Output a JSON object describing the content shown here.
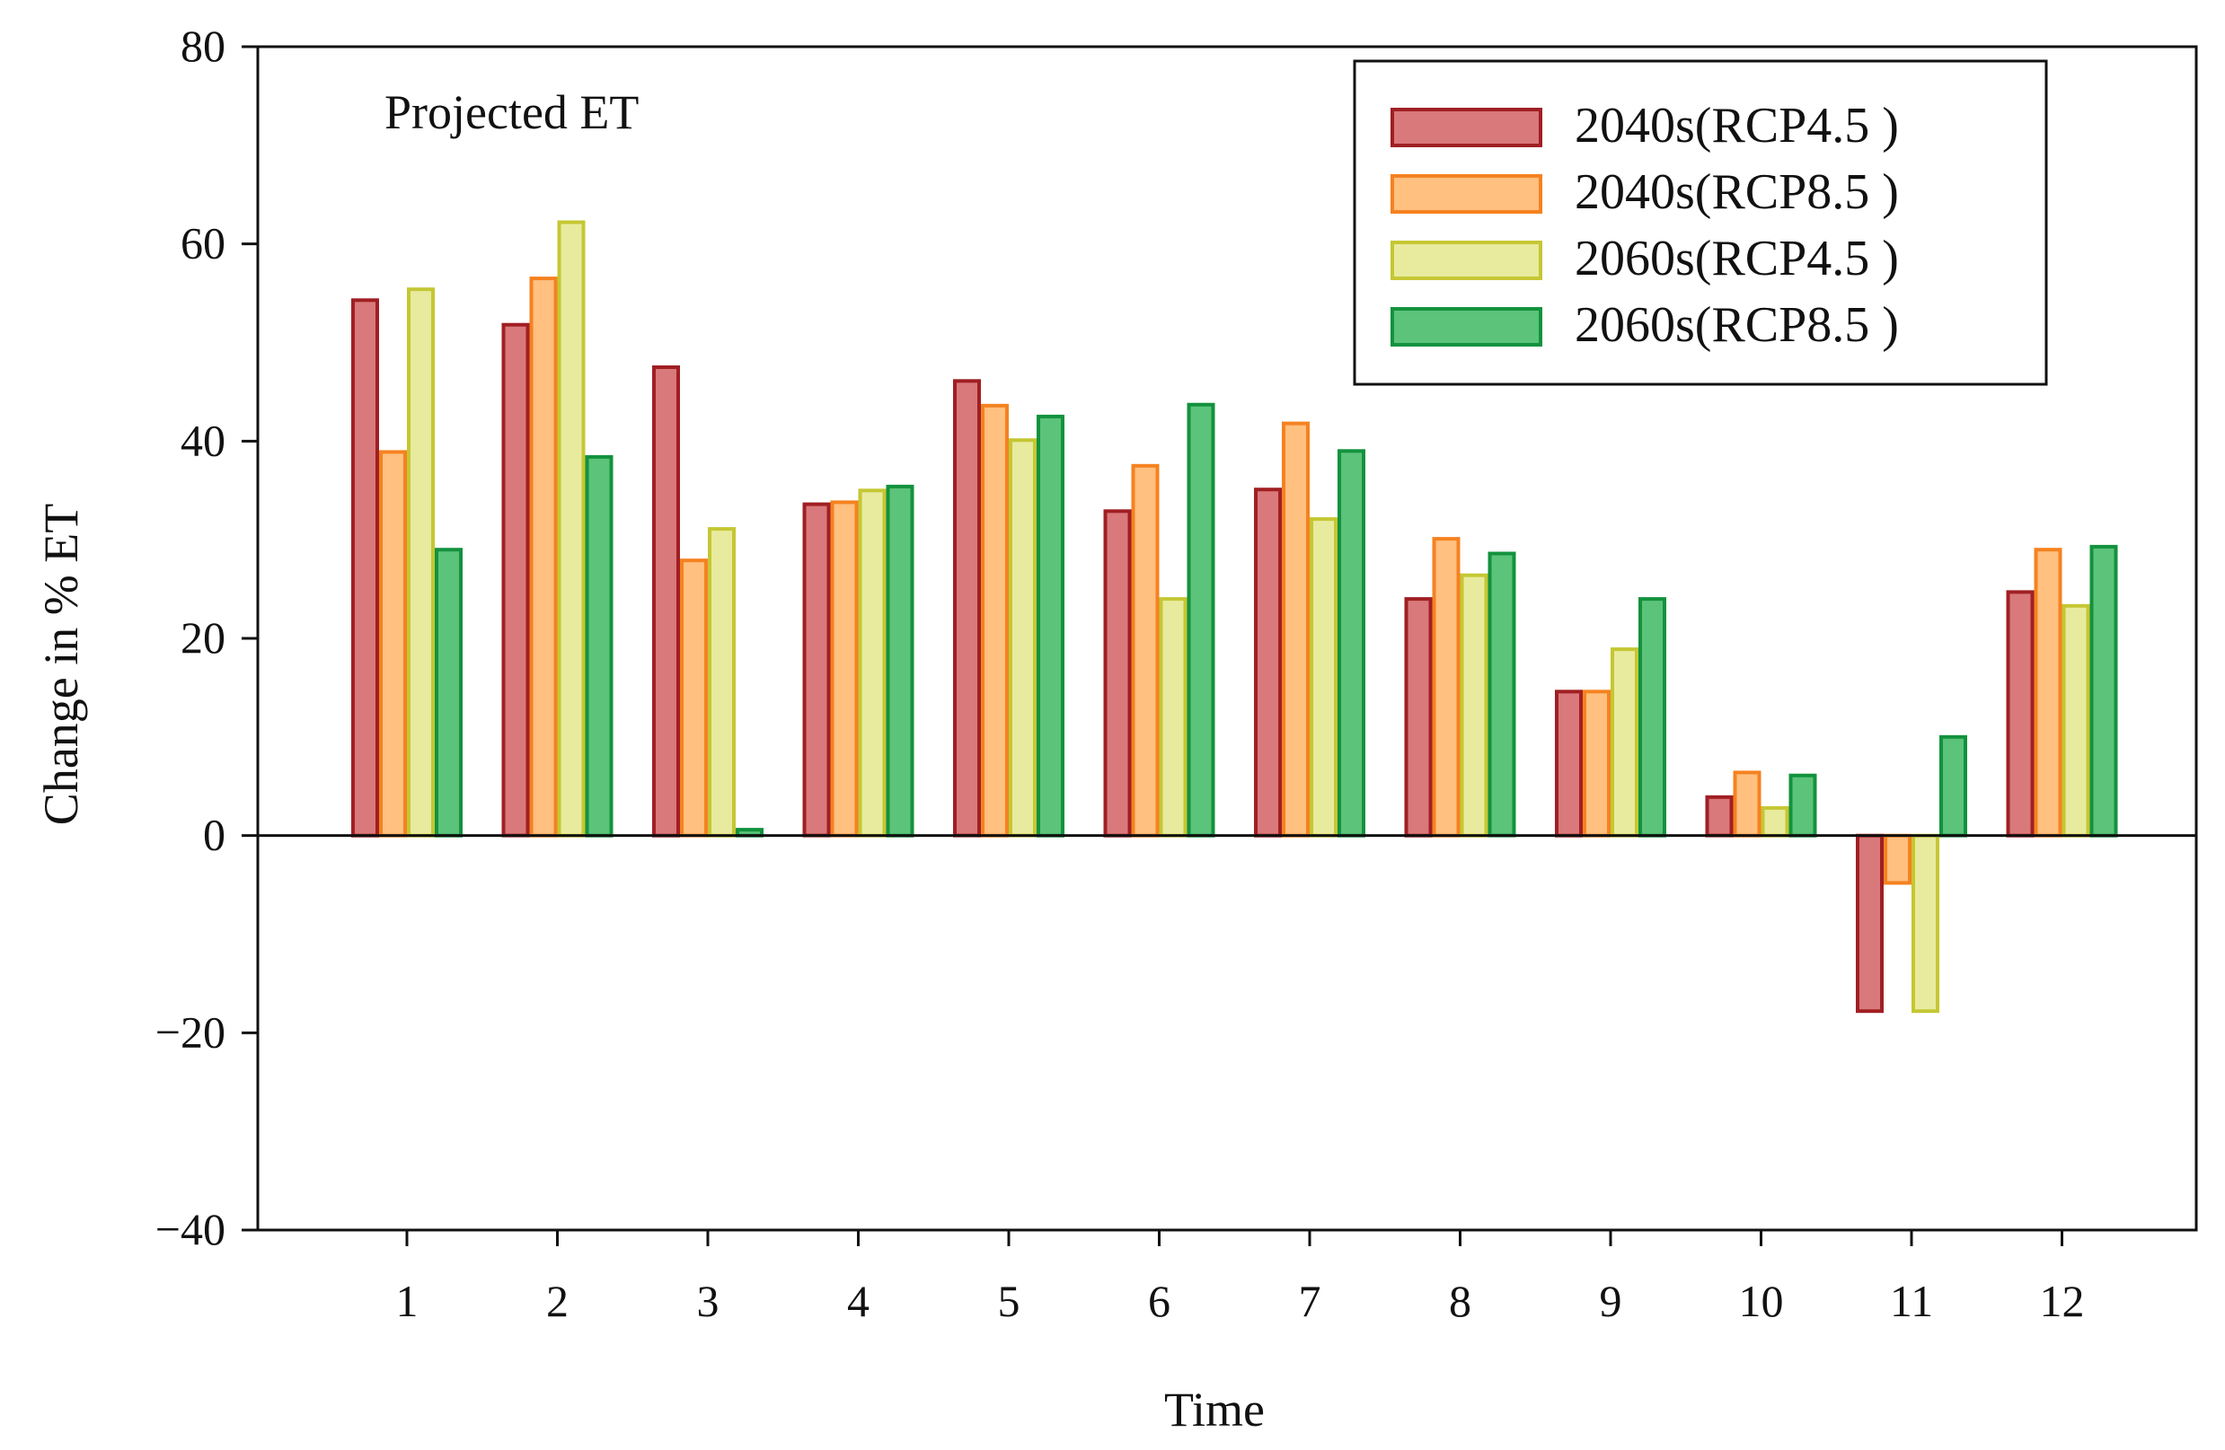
{
  "chart_data": {
    "type": "bar",
    "title": "",
    "annotation": "Projected ET",
    "xlabel": "Time",
    "ylabel": "Change in % ET",
    "ylim": [
      -40,
      80
    ],
    "yticks": [
      -40,
      -20,
      0,
      20,
      40,
      60,
      80
    ],
    "ytick_labels": [
      "−40",
      "−20",
      "0",
      "20",
      "40",
      "60",
      "80"
    ],
    "grid": false,
    "legend_position": "top-right",
    "categories": [
      "1",
      "2",
      "3",
      "4",
      "5",
      "6",
      "7",
      "8",
      "9",
      "10",
      "11",
      "12"
    ],
    "series": [
      {
        "name": "2040s(RCP4.5 )",
        "color": "#D9797B",
        "edge": "#A01F23",
        "values": [
          54.3,
          51.8,
          47.5,
          33.6,
          46.1,
          32.9,
          35.1,
          24.0,
          14.6,
          3.9,
          -17.8,
          24.7
        ]
      },
      {
        "name": "2040s(RCP8.5 )",
        "color": "#FFC080",
        "edge": "#F58220",
        "values": [
          38.9,
          56.5,
          27.9,
          33.8,
          43.6,
          37.5,
          41.8,
          30.1,
          14.6,
          6.4,
          -4.8,
          29.0
        ]
      },
      {
        "name": "2060s(RCP4.5 )",
        "color": "#E8EB9E",
        "edge": "#C5C733",
        "values": [
          55.4,
          62.2,
          31.1,
          35.0,
          40.1,
          24.0,
          32.1,
          26.4,
          18.9,
          2.8,
          -17.8,
          23.3
        ]
      },
      {
        "name": "2060s(RCP8.5 )",
        "color": "#5CC37A",
        "edge": "#13923D",
        "values": [
          29.0,
          38.4,
          0.6,
          35.4,
          42.5,
          43.7,
          39.0,
          28.6,
          24.0,
          6.1,
          10.0,
          29.3
        ]
      }
    ]
  }
}
